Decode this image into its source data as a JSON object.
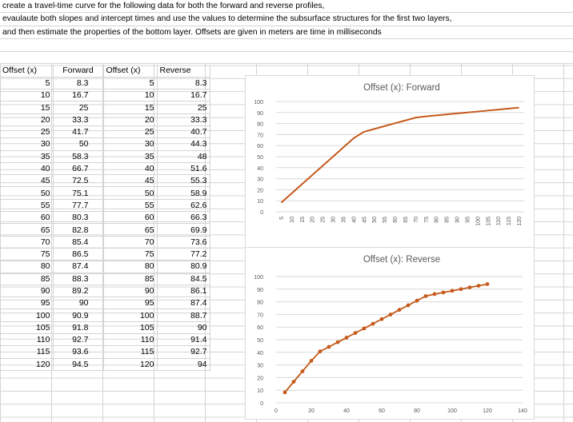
{
  "prompt": {
    "lines": [
      "create a travel-time curve for the following data for both the forward and reverse profiles,",
      "evaulaute both slopes and intercept times and use the values to determine the subsurface structures for the first two layers,",
      "and then estimate the properties of the bottom layer. Offsets are given in meters are time in milliseconds"
    ]
  },
  "table": {
    "headers": [
      "Offset (x)",
      "Forward",
      "Offset (x)",
      "Reverse"
    ],
    "rows": [
      [
        "5",
        "8.3",
        "5",
        "8.3"
      ],
      [
        "10",
        "16.7",
        "10",
        "16.7"
      ],
      [
        "15",
        "25",
        "15",
        "25"
      ],
      [
        "20",
        "33.3",
        "20",
        "33.3"
      ],
      [
        "25",
        "41.7",
        "25",
        "40.7"
      ],
      [
        "30",
        "50",
        "30",
        "44.3"
      ],
      [
        "35",
        "58.3",
        "35",
        "48"
      ],
      [
        "40",
        "66.7",
        "40",
        "51.6"
      ],
      [
        "45",
        "72.5",
        "45",
        "55.3"
      ],
      [
        "50",
        "75.1",
        "50",
        "58.9"
      ],
      [
        "55",
        "77.7",
        "55",
        "62.6"
      ],
      [
        "60",
        "80.3",
        "60",
        "66.3"
      ],
      [
        "65",
        "82.8",
        "65",
        "69.9"
      ],
      [
        "70",
        "85.4",
        "70",
        "73.6"
      ],
      [
        "75",
        "86.5",
        "75",
        "77.2"
      ],
      [
        "80",
        "87.4",
        "80",
        "80.9"
      ],
      [
        "85",
        "88.3",
        "85",
        "84.5"
      ],
      [
        "90",
        "89.2",
        "90",
        "86.1"
      ],
      [
        "95",
        "90",
        "95",
        "87.4"
      ],
      [
        "100",
        "90.9",
        "100",
        "88.7"
      ],
      [
        "105",
        "91.8",
        "105",
        "90"
      ],
      [
        "110",
        "92.7",
        "110",
        "91.4"
      ],
      [
        "115",
        "93.6",
        "115",
        "92.7"
      ],
      [
        "120",
        "94.5",
        "120",
        "94"
      ]
    ]
  },
  "chart_data": [
    {
      "type": "line",
      "title": "Offset (x): Forward",
      "categories": [
        "5",
        "10",
        "15",
        "20",
        "25",
        "30",
        "35",
        "40",
        "45",
        "50",
        "55",
        "60",
        "65",
        "70",
        "75",
        "80",
        "85",
        "90",
        "95",
        "100",
        "105",
        "110",
        "115",
        "120"
      ],
      "values": [
        8.3,
        16.7,
        25,
        33.3,
        41.7,
        50,
        58.3,
        66.7,
        72.5,
        75.1,
        77.7,
        80.3,
        82.8,
        85.4,
        86.5,
        87.4,
        88.3,
        89.2,
        90,
        90.9,
        91.8,
        92.7,
        93.6,
        94.5
      ],
      "ylim": [
        0,
        100
      ],
      "yticks": [
        "0",
        "10",
        "20",
        "30",
        "40",
        "50",
        "60",
        "70",
        "80",
        "90",
        "100"
      ],
      "color": "#c55a1c",
      "grid": true
    },
    {
      "type": "scatter",
      "title": "Offset (x): Reverse",
      "x": [
        5,
        10,
        15,
        20,
        25,
        30,
        35,
        40,
        45,
        50,
        55,
        60,
        65,
        70,
        75,
        80,
        85,
        90,
        95,
        100,
        105,
        110,
        115,
        120
      ],
      "y": [
        8.3,
        16.7,
        25,
        33.3,
        40.7,
        44.3,
        48,
        51.6,
        55.3,
        58.9,
        62.6,
        66.3,
        69.9,
        73.6,
        77.2,
        80.9,
        84.5,
        86.1,
        87.4,
        88.7,
        90,
        91.4,
        92.7,
        94
      ],
      "xlim": [
        0,
        140
      ],
      "ylim": [
        0,
        100
      ],
      "xticks": [
        "0",
        "20",
        "40",
        "60",
        "80",
        "100",
        "120",
        "140"
      ],
      "yticks": [
        "0",
        "10",
        "20",
        "30",
        "40",
        "50",
        "60",
        "70",
        "80",
        "90",
        "100"
      ],
      "color": "#c55a1c",
      "lines_connecting": true,
      "grid": true
    }
  ]
}
